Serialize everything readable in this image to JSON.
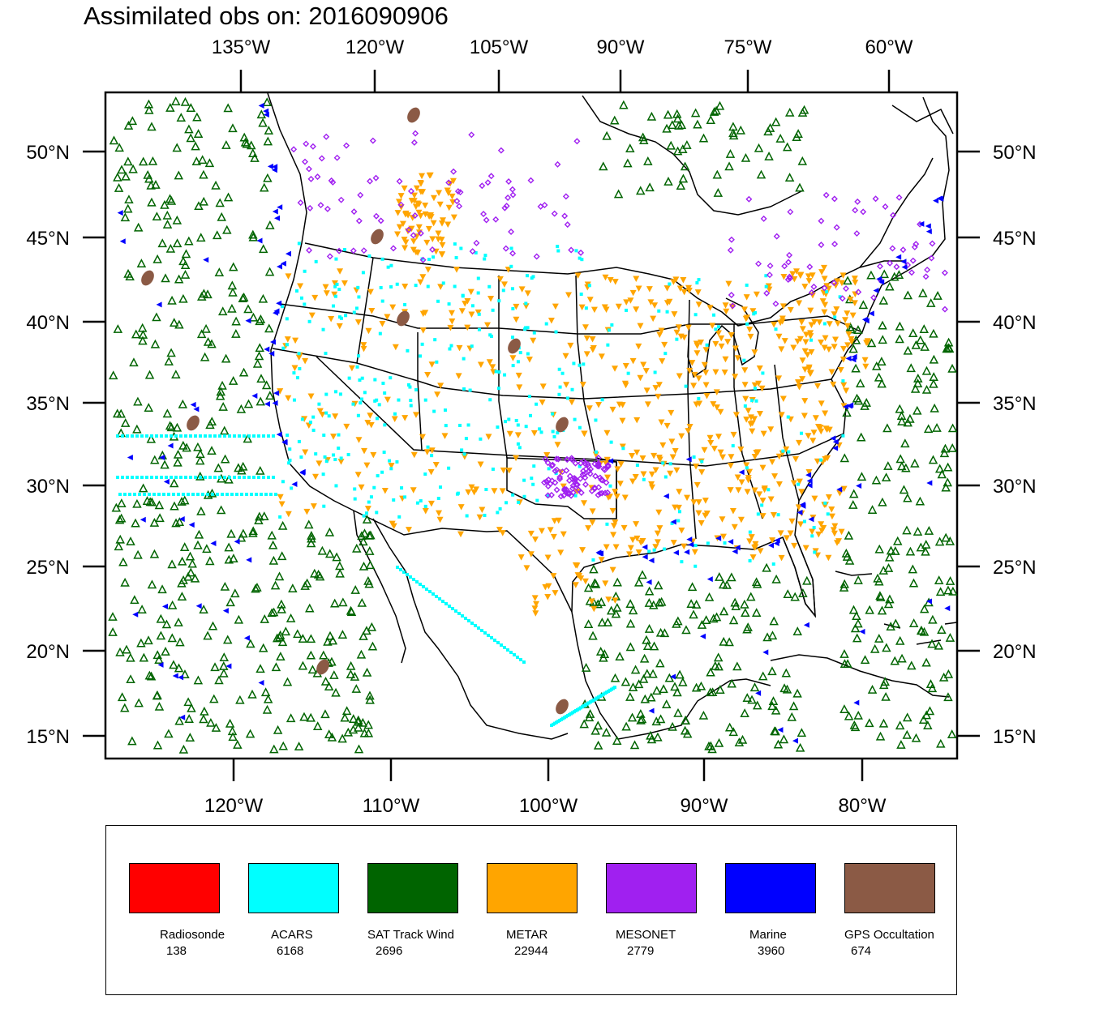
{
  "title": "Assimilated obs on: 2016090906",
  "axes": {
    "top_ticks": [
      "135°W",
      "120°W",
      "105°W",
      "90°W",
      "75°W",
      "60°W"
    ],
    "bottom_ticks": [
      "120°W",
      "110°W",
      "100°W",
      "90°W",
      "80°W"
    ],
    "lat_ticks": [
      "50°N",
      "45°N",
      "40°N",
      "35°N",
      "30°N",
      "25°N",
      "20°N",
      "15°N"
    ]
  },
  "legend": [
    {
      "name": "Radiosonde",
      "count": "138",
      "color": "#ff0000"
    },
    {
      "name": "ACARS",
      "count": "6168",
      "color": "#00ffff"
    },
    {
      "name": "SAT Track Wind",
      "count": "2696",
      "color": "#006400"
    },
    {
      "name": "METAR",
      "count": "22944",
      "color": "#ffa500"
    },
    {
      "name": "MESONET",
      "count": "2779",
      "color": "#a020f0"
    },
    {
      "name": "Marine",
      "count": "3960",
      "color": "#0000ff"
    },
    {
      "name": "GPS Occultation",
      "count": "674",
      "color": "#8b5a45"
    }
  ]
}
